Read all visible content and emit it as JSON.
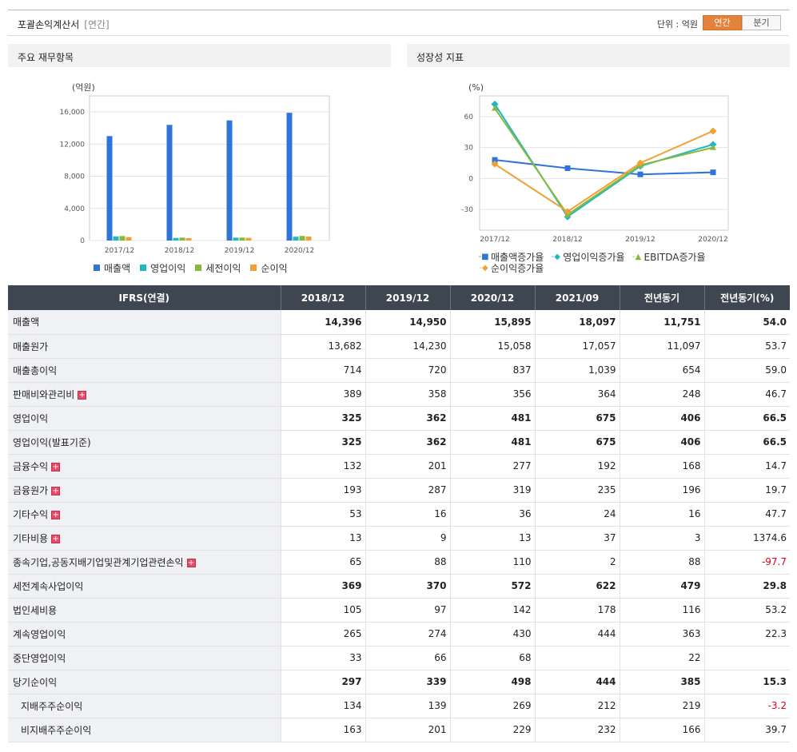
{
  "header": {
    "title": "포괄손익계산서",
    "subtitle": "[연간]",
    "unit_label": "단위 : 억원",
    "toggle": [
      "연간",
      "분기"
    ]
  },
  "panels": {
    "left_title": "주요 재무항목",
    "right_title": "성장성 지표"
  },
  "chart_data": [
    {
      "type": "bar",
      "ylabel": "(억원)",
      "ylim": [
        0,
        18000
      ],
      "yticks": [
        "0",
        "4,000",
        "8,000",
        "12,000",
        "16,000"
      ],
      "categories": [
        "2017/12",
        "2018/12",
        "2019/12",
        "2020/12"
      ],
      "series": [
        {
          "name": "매출액",
          "color": "#2f74d9",
          "values": [
            13000,
            14396,
            14950,
            15895
          ]
        },
        {
          "name": "영업이익",
          "color": "#20b8c4",
          "values": [
            520,
            325,
            362,
            481
          ]
        },
        {
          "name": "세전이익",
          "color": "#8ab83a",
          "values": [
            560,
            369,
            370,
            572
          ]
        },
        {
          "name": "순이익",
          "color": "#f2a033",
          "values": [
            430,
            297,
            339,
            498
          ]
        }
      ],
      "legend": "bottom",
      "grid": true
    },
    {
      "type": "line",
      "ylabel": "(%)",
      "ylim": [
        -50,
        80
      ],
      "yticks": [
        "-30",
        "0",
        "30",
        "60"
      ],
      "categories": [
        "2017/12",
        "2018/12",
        "2019/12",
        "2020/12"
      ],
      "series": [
        {
          "name": "매출액증가율",
          "color": "#2f74d9",
          "marker": "square",
          "values": [
            18,
            10,
            4,
            6
          ]
        },
        {
          "name": "영업이익증가율",
          "color": "#20b8c4",
          "marker": "diamond",
          "values": [
            72,
            -37,
            12,
            33
          ]
        },
        {
          "name": "EBITDA증가율",
          "color": "#8ab83a",
          "marker": "triangle",
          "values": [
            68,
            -35,
            13,
            30
          ]
        },
        {
          "name": "순이익증가율",
          "color": "#f2a033",
          "marker": "diamond",
          "values": [
            14,
            -32,
            15,
            46
          ]
        }
      ],
      "legend": "bottom",
      "grid": true
    }
  ],
  "table": {
    "columns": [
      "IFRS(연결)",
      "2018/12",
      "2019/12",
      "2020/12",
      "2021/09",
      "전년동기",
      "전년동기(%)"
    ],
    "rows": [
      {
        "label": "매출액",
        "values": [
          "14,396",
          "14,950",
          "15,895",
          "18,097",
          "11,751",
          "54.0"
        ],
        "bold": true
      },
      {
        "label": "매출원가",
        "values": [
          "13,682",
          "14,230",
          "15,058",
          "17,057",
          "11,097",
          "53.7"
        ]
      },
      {
        "label": "매출총이익",
        "values": [
          "714",
          "720",
          "837",
          "1,039",
          "654",
          "59.0"
        ]
      },
      {
        "label": "판매비와관리비",
        "values": [
          "389",
          "358",
          "356",
          "364",
          "248",
          "46.7"
        ],
        "expand": true
      },
      {
        "label": "영업이익",
        "values": [
          "325",
          "362",
          "481",
          "675",
          "406",
          "66.5"
        ],
        "bold": true,
        "sep": true
      },
      {
        "label": "영업이익(발표기준)",
        "values": [
          "325",
          "362",
          "481",
          "675",
          "406",
          "66.5"
        ],
        "bold": true
      },
      {
        "label": "금융수익",
        "values": [
          "132",
          "201",
          "277",
          "192",
          "168",
          "14.7"
        ],
        "expand": true
      },
      {
        "label": "금융원가",
        "values": [
          "193",
          "287",
          "319",
          "235",
          "196",
          "19.7"
        ],
        "expand": true
      },
      {
        "label": "기타수익",
        "values": [
          "53",
          "16",
          "36",
          "24",
          "16",
          "47.7"
        ],
        "expand": true
      },
      {
        "label": "기타비용",
        "values": [
          "13",
          "9",
          "13",
          "37",
          "3",
          "1374.6"
        ],
        "expand": true
      },
      {
        "label": "종속기업,공동지배기업및관계기업관련손익",
        "values": [
          "65",
          "88",
          "110",
          "2",
          "88",
          "-97.7"
        ],
        "expand": true,
        "neg_last": true
      },
      {
        "label": "세전계속사업이익",
        "values": [
          "369",
          "370",
          "572",
          "622",
          "479",
          "29.8"
        ],
        "bold": true,
        "sep": true
      },
      {
        "label": "법인세비용",
        "values": [
          "105",
          "97",
          "142",
          "178",
          "116",
          "53.2"
        ]
      },
      {
        "label": "계속영업이익",
        "values": [
          "265",
          "274",
          "430",
          "444",
          "363",
          "22.3"
        ]
      },
      {
        "label": "중단영업이익",
        "values": [
          "33",
          "66",
          "68",
          "",
          "22",
          ""
        ]
      },
      {
        "label": "당기순이익",
        "values": [
          "297",
          "339",
          "498",
          "444",
          "385",
          "15.3"
        ],
        "bold": true
      },
      {
        "label": "지배주주순이익",
        "values": [
          "134",
          "139",
          "269",
          "212",
          "219",
          "-3.2"
        ],
        "indent": true,
        "neg_last": true
      },
      {
        "label": "비지배주주순이익",
        "values": [
          "163",
          "201",
          "229",
          "232",
          "166",
          "39.7"
        ],
        "indent": true
      }
    ]
  }
}
